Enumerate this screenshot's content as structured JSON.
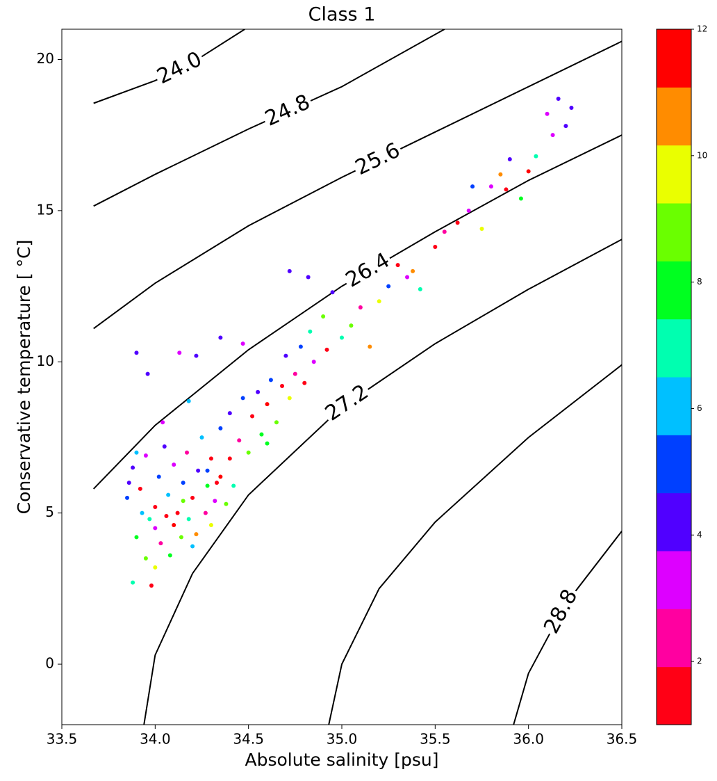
{
  "chart_data": {
    "type": "scatter",
    "title": "Class 1",
    "x_label": "Absolute salinity [psu]",
    "y_label": "Conservative temperature [ °C]",
    "xlim": [
      33.5,
      36.5
    ],
    "xticks": [
      33.5,
      {
        "value": 34,
        "label": "34.0"
      },
      34.5,
      {
        "value": 35,
        "label": "35.0"
      },
      35.5,
      {
        "value": 36,
        "label": "36.0"
      },
      36.5
    ],
    "ylim": [
      -2,
      21
    ],
    "yticks": [
      0,
      5,
      10,
      15,
      20
    ],
    "x": [
      33.85,
      33.88,
      33.9,
      33.92,
      33.95,
      33.95,
      33.97,
      34.0,
      34.0,
      34.02,
      34.03,
      34.05,
      34.07,
      34.08,
      34.1,
      34.1,
      34.12,
      34.14,
      34.15,
      34.17,
      34.18,
      34.2,
      34.22,
      34.23,
      34.25,
      34.27,
      34.28,
      34.3,
      34.3,
      34.32,
      34.35,
      34.35,
      34.38,
      34.4,
      34.4,
      34.42,
      34.45,
      34.47,
      34.5,
      34.52,
      34.55,
      34.57,
      34.6,
      34.62,
      34.65,
      34.68,
      34.7,
      34.72,
      34.75,
      34.78,
      34.8,
      34.83,
      34.85,
      34.9,
      34.92,
      34.95,
      35.0,
      35.05,
      35.1,
      35.15,
      35.2,
      35.25,
      35.3,
      35.35,
      35.38,
      35.42,
      35.5,
      35.55,
      35.62,
      35.68,
      35.7,
      35.75,
      35.8,
      35.85,
      35.88,
      35.9,
      35.96,
      36.0,
      36.04,
      36.1,
      36.13,
      36.16,
      36.2,
      36.23,
      33.9,
      33.96,
      34.13,
      34.22,
      34.35,
      34.47,
      34.72,
      34.82,
      33.98,
      33.88,
      34.0,
      33.93,
      34.06,
      34.15,
      34.2,
      34.33,
      33.86,
      33.9,
      34.04,
      34.18,
      34.28,
      34.6
    ],
    "y": [
      5.5,
      6.5,
      4.2,
      5.8,
      3.5,
      6.9,
      4.8,
      3.2,
      5.2,
      6.2,
      4.0,
      7.2,
      5.6,
      3.6,
      4.6,
      6.6,
      5.0,
      4.2,
      6.0,
      7.0,
      4.8,
      5.5,
      4.3,
      6.4,
      7.5,
      5.0,
      5.9,
      6.8,
      4.6,
      5.4,
      7.8,
      6.2,
      5.3,
      8.3,
      6.8,
      5.9,
      7.4,
      8.8,
      7.0,
      8.2,
      9.0,
      7.6,
      8.6,
      9.4,
      8.0,
      9.2,
      10.2,
      8.8,
      9.6,
      10.5,
      9.3,
      11.0,
      10.0,
      11.5,
      10.4,
      12.3,
      10.8,
      11.2,
      11.8,
      10.5,
      12.0,
      12.5,
      13.2,
      12.8,
      13.0,
      12.4,
      13.8,
      14.3,
      14.6,
      15.0,
      15.8,
      14.4,
      15.8,
      16.2,
      15.7,
      16.7,
      15.4,
      16.3,
      16.8,
      18.2,
      17.5,
      18.7,
      17.8,
      18.4,
      10.3,
      9.6,
      10.3,
      10.2,
      10.8,
      10.6,
      13.0,
      12.8,
      2.6,
      2.7,
      4.5,
      5.0,
      4.9,
      5.4,
      3.9,
      6.0,
      6.0,
      7.0,
      8.0,
      8.7,
      6.4,
      7.3
    ],
    "c": [
      5,
      4,
      8,
      1,
      9,
      3,
      7,
      10,
      1,
      5,
      2,
      4,
      6,
      8,
      12,
      3,
      1,
      9,
      5,
      2,
      7,
      1,
      11,
      4,
      6,
      2,
      8,
      1,
      10,
      3,
      5,
      12,
      9,
      4,
      1,
      7,
      2,
      5,
      9,
      1,
      4,
      8,
      12,
      5,
      9,
      1,
      4,
      10,
      2,
      5,
      1,
      7,
      3,
      9,
      1,
      4,
      7,
      9,
      2,
      11,
      10,
      5,
      1,
      3,
      11,
      7,
      1,
      2,
      1,
      3,
      5,
      10,
      3,
      11,
      1,
      4,
      8,
      12,
      7,
      3,
      3,
      4,
      4,
      4,
      4,
      4,
      3,
      4,
      4,
      3,
      4,
      4,
      1,
      7,
      3,
      6,
      1,
      9,
      6,
      1,
      4,
      6,
      3,
      6,
      5,
      8
    ],
    "colormap": [
      "#ff0015",
      "#ff00a0",
      "#dd00ff",
      "#5000ff",
      "#0040ff",
      "#00c0ff",
      "#00ffb0",
      "#00ff20",
      "#6aff00",
      "#eaff00",
      "#ff8c00",
      "#ff0000"
    ],
    "clim": [
      1,
      12
    ],
    "cticks": [
      2,
      4,
      6,
      8,
      10,
      12
    ],
    "contours": [
      {
        "label": "24.0",
        "x": [
          33.67,
          34.0,
          34.2,
          34.48
        ],
        "y": [
          18.55,
          19.3,
          19.9,
          21
        ]
      },
      {
        "label": "24.8",
        "x": [
          33.67,
          34.0,
          34.5,
          35.0,
          35.55
        ],
        "y": [
          15.15,
          16.2,
          17.7,
          19.1,
          21
        ]
      },
      {
        "label": "25.6",
        "x": [
          33.67,
          34.0,
          34.5,
          35.0,
          35.5,
          36.0,
          36.5
        ],
        "y": [
          11.1,
          12.6,
          14.5,
          16.1,
          17.6,
          19.1,
          20.6
        ]
      },
      {
        "label": "26.4",
        "x": [
          33.67,
          34.0,
          34.5,
          35.0,
          35.5,
          36.0,
          36.5
        ],
        "y": [
          5.8,
          7.9,
          10.4,
          12.5,
          14.3,
          16.0,
          17.5
        ]
      },
      {
        "label": "27.2",
        "x": [
          33.94,
          34.0,
          34.2,
          34.5,
          35.0,
          35.5,
          36.0,
          36.5
        ],
        "y": [
          -2,
          0.3,
          3.0,
          5.6,
          8.5,
          10.6,
          12.4,
          14.05
        ]
      },
      {
        "x": [
          34.93,
          35.0,
          35.2,
          35.5,
          36.0,
          36.5
        ],
        "y": [
          -2,
          0.0,
          2.5,
          4.7,
          7.5,
          9.9
        ]
      },
      {
        "label": "28.8",
        "x": [
          35.92,
          36.0,
          36.2,
          36.5
        ],
        "y": [
          -2,
          -0.3,
          2.0,
          4.4
        ]
      }
    ]
  }
}
